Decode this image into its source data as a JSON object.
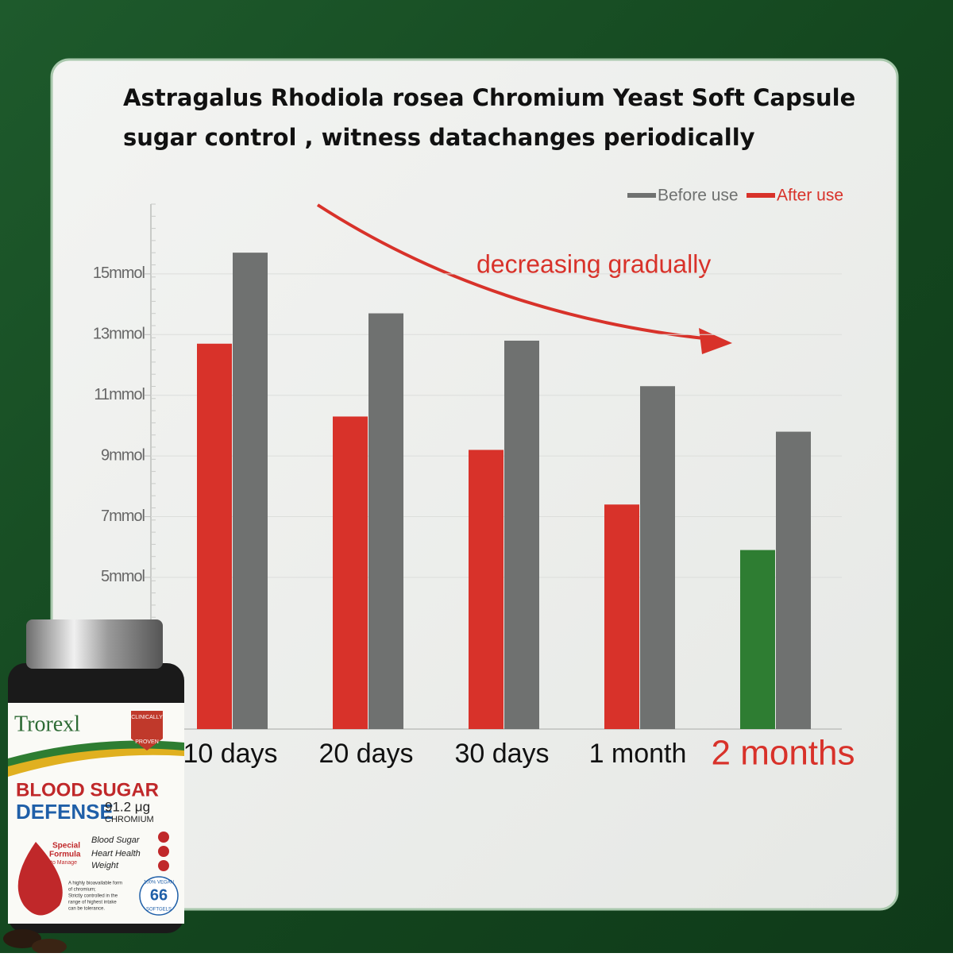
{
  "chart_data": {
    "type": "bar",
    "title": "Astragalus Rhodiola rosea Chromium Yeast Soft Capsule",
    "subtitle": "sugar control , witness datachanges periodically",
    "annotation": "decreasing gradually",
    "categories": [
      "10 days",
      "20 days",
      "30 days",
      "1 month",
      "2 months"
    ],
    "series": [
      {
        "name": "Before use",
        "color": "#6f7170",
        "values": [
          15.7,
          13.7,
          12.8,
          11.3,
          9.8
        ]
      },
      {
        "name": "After use",
        "color": "#d8322a",
        "colors": [
          "#d8322a",
          "#d8322a",
          "#d8322a",
          "#d8322a",
          "#2e7d32"
        ],
        "values": [
          12.7,
          10.3,
          9.2,
          7.4,
          5.9
        ]
      }
    ],
    "ylim": [
      0,
      17.3
    ],
    "yticks": [
      {
        "value": 5,
        "label": "5mmol"
      },
      {
        "value": 7,
        "label": "7mmol"
      },
      {
        "value": 9,
        "label": "9mmol"
      },
      {
        "value": 11,
        "label": "11mmol"
      },
      {
        "value": 13,
        "label": "13mmol"
      },
      {
        "value": 15,
        "label": "15mmol"
      }
    ],
    "legend": "top-right",
    "grid": true
  },
  "product": {
    "brand": "Trorexl",
    "badge_top": "CLINICALLY",
    "badge_bottom": "PROVEN",
    "name_line1": "BLOOD SUGAR",
    "name_line2": "DEFENSE",
    "dose": "91.2 μg",
    "ingredient": "CHROMIUM",
    "formula_line1": "Special",
    "formula_line2": "Formula",
    "formula_line3": "to Manage",
    "benefits": [
      "Blood Sugar",
      "Heart Health",
      "Weight"
    ],
    "note_lines": [
      "A highly bioavailable form",
      "of chromium;",
      "Strictly controlled in the",
      "range of highest intake",
      "can be tolerance."
    ],
    "count": "66",
    "vegan": "100% VEGAN",
    "form": "SOFTGELS"
  }
}
